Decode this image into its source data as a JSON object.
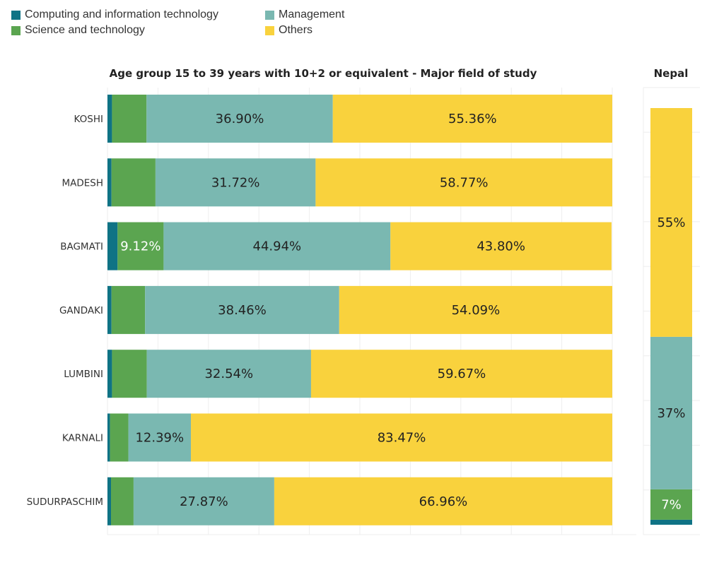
{
  "legend": {
    "items": [
      {
        "name": "Computing and information technology",
        "color": "#0f7385"
      },
      {
        "name": "Science and technology",
        "color": "#5ba550"
      },
      {
        "name": "Management",
        "color": "#7ab8b1"
      },
      {
        "name": "Others",
        "color": "#f9d23d"
      }
    ]
  },
  "chart_data": [
    {
      "type": "bar",
      "orientation": "horizontal",
      "stacked": true,
      "title": "Age group 15 to 39 years with 10+2 or equivalent - Major field of study",
      "categories": [
        "KOSHI",
        "MADESH",
        "BAGMATI",
        "GANDAKI",
        "LUMBINI",
        "KARNALI",
        "SUDURPASCHIM"
      ],
      "series": [
        {
          "name": "Computing and information technology",
          "values": [
            0.9,
            0.8,
            2.0,
            0.8,
            0.9,
            0.5,
            0.7
          ]
        },
        {
          "name": "Science and technology",
          "values": [
            6.84,
            8.71,
            9.12,
            6.65,
            6.89,
            3.64,
            4.47
          ]
        },
        {
          "name": "Management",
          "values": [
            36.9,
            31.72,
            44.94,
            38.46,
            32.54,
            12.39,
            27.87
          ]
        },
        {
          "name": "Others",
          "values": [
            55.36,
            58.77,
            43.8,
            54.09,
            59.67,
            83.47,
            66.96
          ]
        }
      ],
      "data_labels": [
        [
          "",
          "",
          "36.90%",
          "55.36%"
        ],
        [
          "",
          "",
          "31.72%",
          "58.77%"
        ],
        [
          "",
          "9.12%",
          "44.94%",
          "43.80%"
        ],
        [
          "",
          "",
          "38.46%",
          "54.09%"
        ],
        [
          "",
          "",
          "32.54%",
          "59.67%"
        ],
        [
          "",
          "",
          "12.39%",
          "83.47%"
        ],
        [
          "",
          "",
          "27.87%",
          "66.96%"
        ]
      ],
      "xlim": [
        0,
        100
      ],
      "grid": true,
      "legend_position": "top-left"
    },
    {
      "type": "bar",
      "orientation": "vertical",
      "stacked": true,
      "title": "Nepal",
      "categories": [
        "Nepal"
      ],
      "series": [
        {
          "name": "Computing and information technology",
          "values": [
            1.2
          ]
        },
        {
          "name": "Science and technology",
          "values": [
            7.3
          ]
        },
        {
          "name": "Management",
          "values": [
            36.6
          ]
        },
        {
          "name": "Others",
          "values": [
            54.9
          ]
        }
      ],
      "data_labels": [
        [
          "",
          "7%",
          "37%",
          "55%"
        ]
      ],
      "ylim": [
        0,
        100
      ],
      "grid": true
    }
  ]
}
